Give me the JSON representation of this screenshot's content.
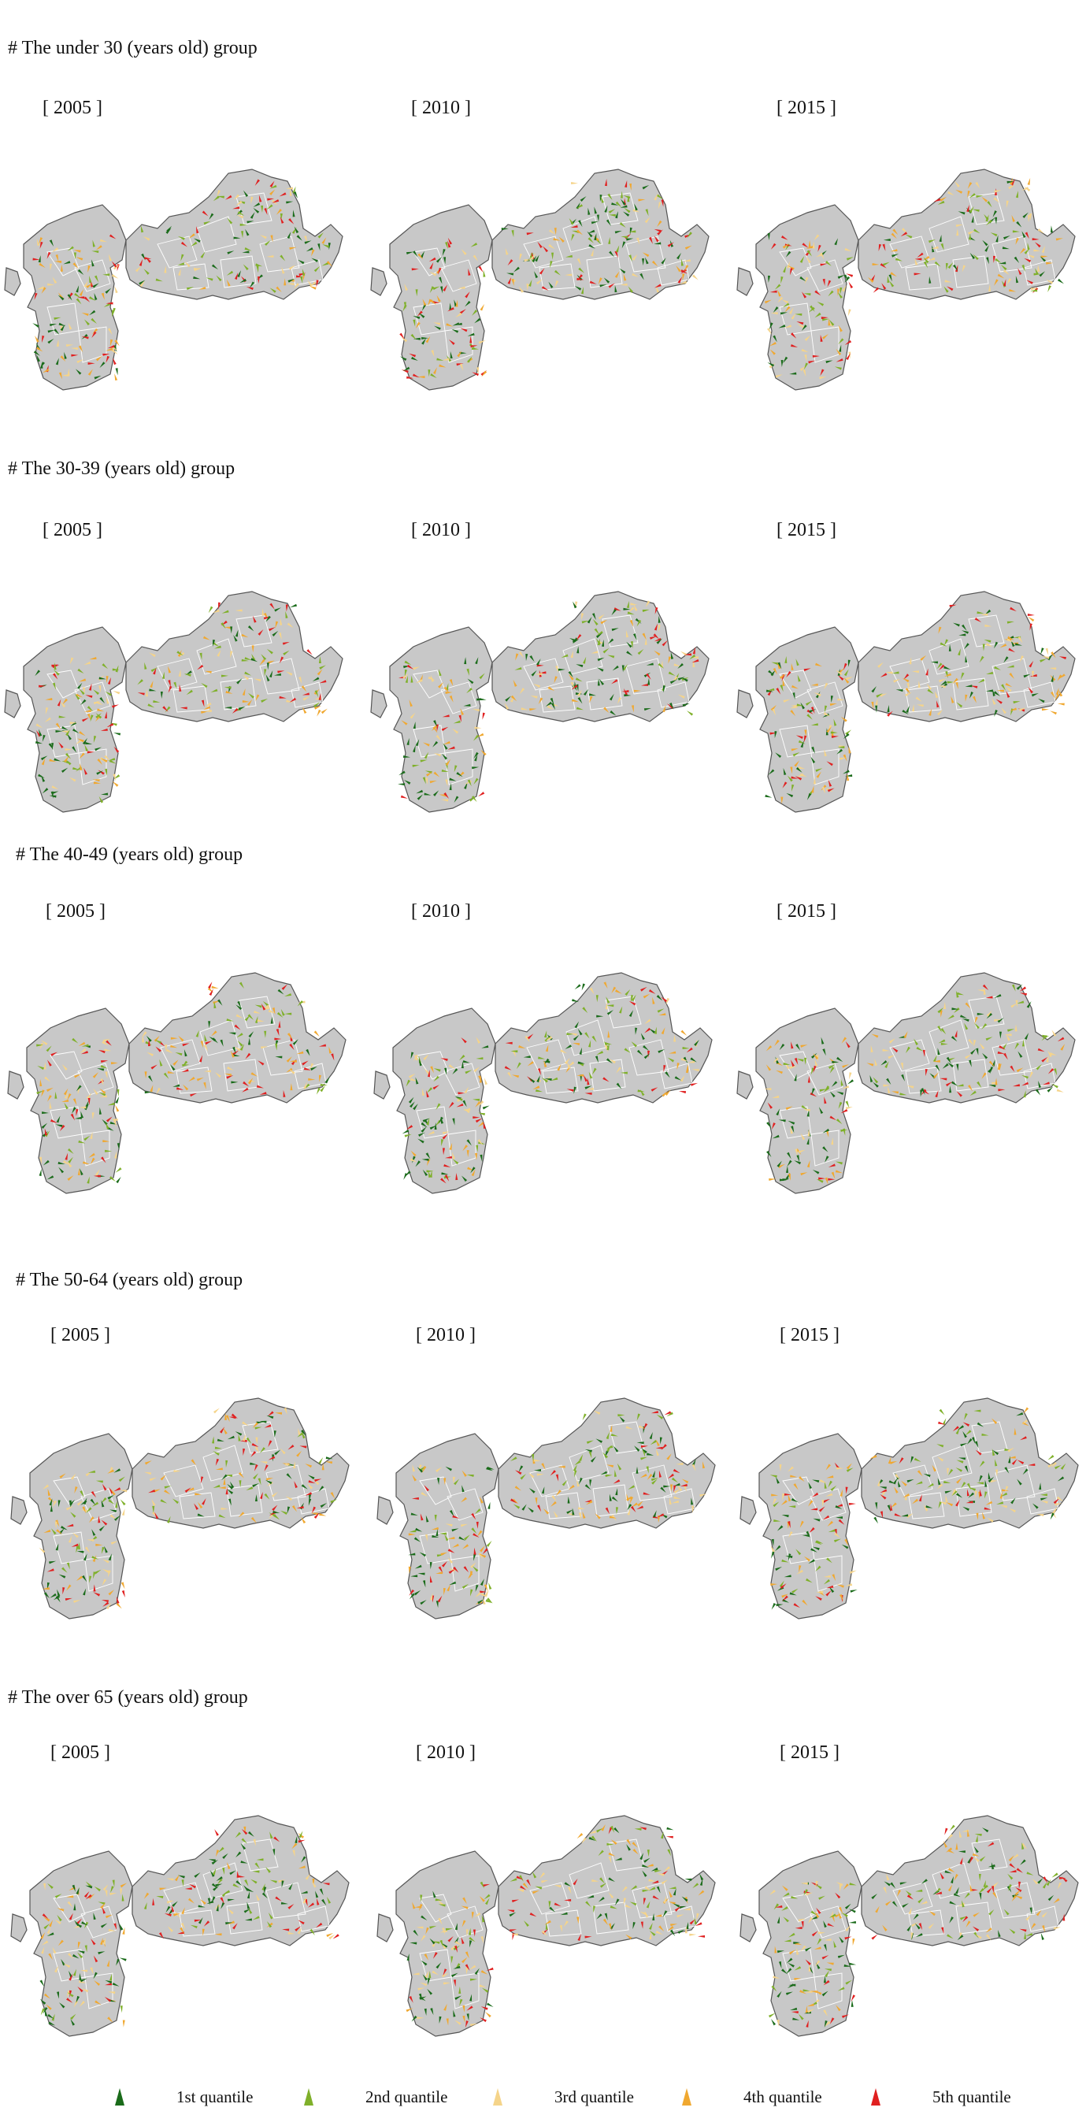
{
  "groups": [
    {
      "title": "# The under 30 (years old) group",
      "years": [
        "[ 2005 ]",
        "[ 2010 ]",
        "[ 2015 ]"
      ]
    },
    {
      "title": "# The 30-39 (years old) group",
      "years": [
        "[ 2005 ]",
        "[ 2010 ]",
        "[ 2015 ]"
      ]
    },
    {
      "title": "# The 40-49 (years old) group",
      "years": [
        "[ 2005 ]",
        "[ 2010 ]",
        "[ 2015 ]"
      ]
    },
    {
      "title": "# The 50-64 (years old) group",
      "years": [
        "[ 2005 ]",
        "[ 2010 ]",
        "[ 2015 ]"
      ]
    },
    {
      "title": "# The over 65 (years old) group",
      "years": [
        "[ 2005 ]",
        "[ 2010 ]",
        "[ 2015 ]"
      ]
    }
  ],
  "legend": [
    {
      "label": "1st quantile",
      "color": "#1a6b1a"
    },
    {
      "label": "2nd quantile",
      "color": "#7fb02a"
    },
    {
      "label": "3rd quantile",
      "color": "#f5d48a"
    },
    {
      "label": "4th quantile",
      "color": "#f0a830"
    },
    {
      "label": "5th quantile",
      "color": "#e02020"
    }
  ],
  "map_style": {
    "land": "#c8c8c8",
    "boundary": "#ffffff",
    "outline": "#555555"
  }
}
